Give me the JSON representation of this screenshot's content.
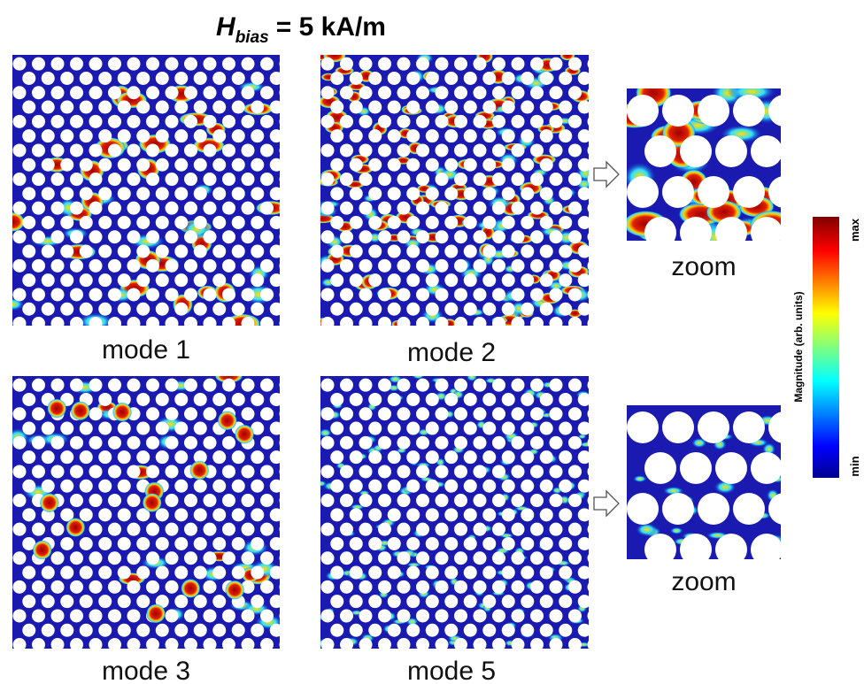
{
  "title": {
    "symbol": "H",
    "subscript": "bias",
    "rest": "= 5 kA/m"
  },
  "panels": [
    {
      "label": "mode 1"
    },
    {
      "label": "mode 2"
    },
    {
      "label": "mode 3"
    },
    {
      "label": "mode 5"
    }
  ],
  "zooms": [
    {
      "label": "zoom"
    },
    {
      "label": "zoom"
    }
  ],
  "colorbar": {
    "label": "Magnitude (arb. units)",
    "max": "max",
    "min": "min"
  }
}
